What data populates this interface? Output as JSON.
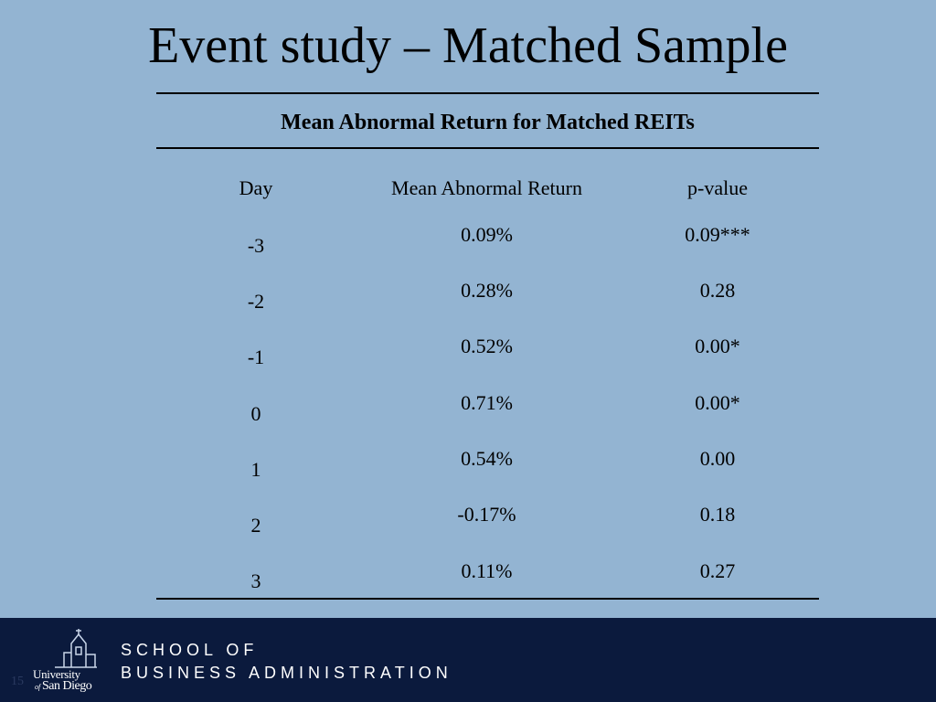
{
  "slide": {
    "title": "Event study – Matched Sample",
    "number": "15"
  },
  "table": {
    "caption": "Mean Abnormal Return for Matched REITs",
    "headers": {
      "day": "Day",
      "mar": "Mean Abnormal Return",
      "pvalue": "p-value"
    },
    "rows": [
      {
        "day": "-3",
        "mar": "0.09%",
        "pvalue": "0.09***"
      },
      {
        "day": "-2",
        "mar": "0.28%",
        "pvalue": "0.28"
      },
      {
        "day": "-1",
        "mar": "0.52%",
        "pvalue": "0.00*"
      },
      {
        "day": "0",
        "mar": "0.71%",
        "pvalue": "0.00*"
      },
      {
        "day": "1",
        "mar": "0.54%",
        "pvalue": "0.00"
      },
      {
        "day": "2",
        "mar": "-0.17%",
        "pvalue": "0.18"
      },
      {
        "day": "3",
        "mar": "0.11%",
        "pvalue": "0.27"
      }
    ]
  },
  "footer": {
    "line1": "SCHOOL OF",
    "line2": "BUSINESS ADMINISTRATION",
    "logo": {
      "line1": "University",
      "line2_small": "of",
      "line2": "San Diego",
      "icon": "mission-tower-icon"
    }
  },
  "colors": {
    "background": "#93b4d2",
    "footer": "#0b1a3d",
    "text": "#000000"
  }
}
